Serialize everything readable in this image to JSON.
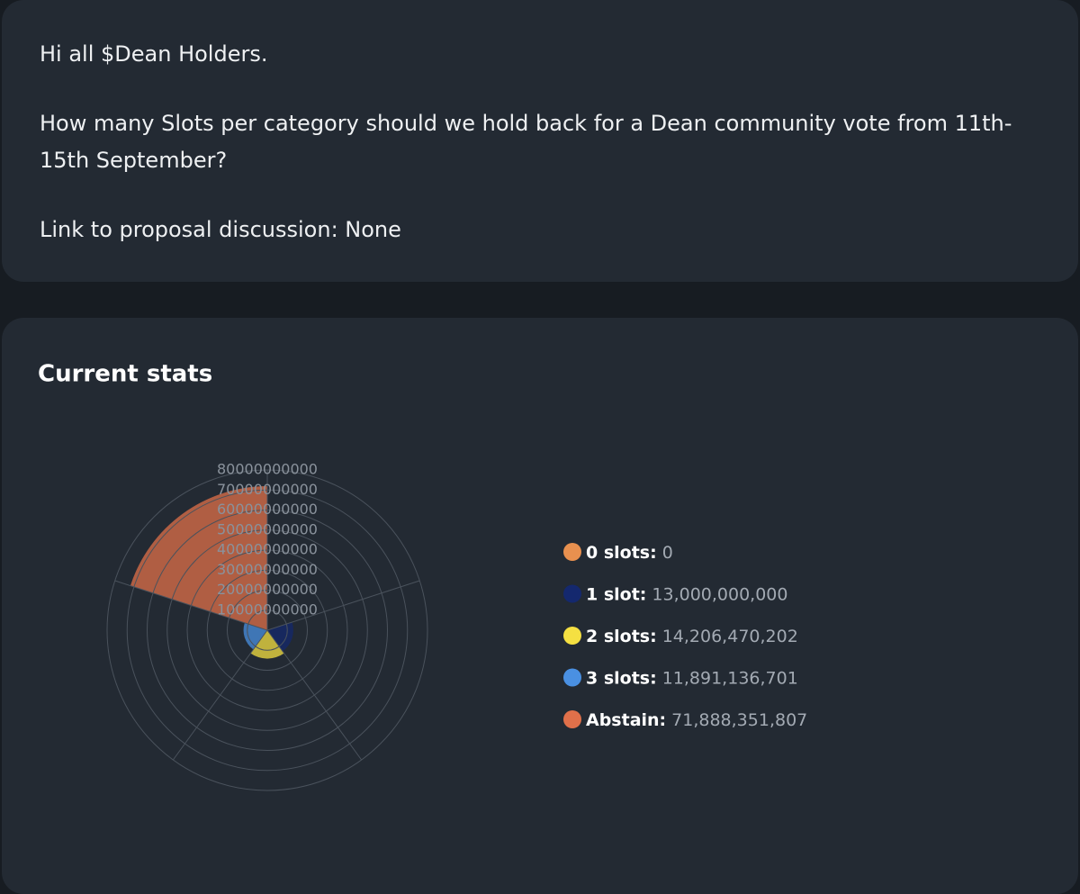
{
  "message": {
    "greeting": "Hi all $Dean Holders.",
    "question": "How many Slots per category should we hold back for a Dean community vote from 11th-15th September?",
    "link": "Link to proposal discussion: None"
  },
  "stats": {
    "title": "Current stats"
  },
  "chart_data": {
    "type": "polarArea",
    "categories": [
      "0 slots:",
      "1 slot:",
      "2 slots:",
      "3 slots:",
      "Abstain:"
    ],
    "values": [
      0,
      13000000000,
      14206470202,
      11891136701,
      71888351807
    ],
    "value_labels": [
      "0",
      "13,000,000,000",
      "14,206,470,202",
      "11,891,136,701",
      "71,888,351,807"
    ],
    "colors": [
      "#e8904f",
      "#14286e",
      "#f5e042",
      "#4a90e2",
      "#e0704a"
    ],
    "rlim": [
      0,
      80000000000
    ],
    "rticks": [
      10000000000,
      20000000000,
      30000000000,
      40000000000,
      50000000000,
      60000000000,
      70000000000,
      80000000000
    ],
    "grid": true
  }
}
